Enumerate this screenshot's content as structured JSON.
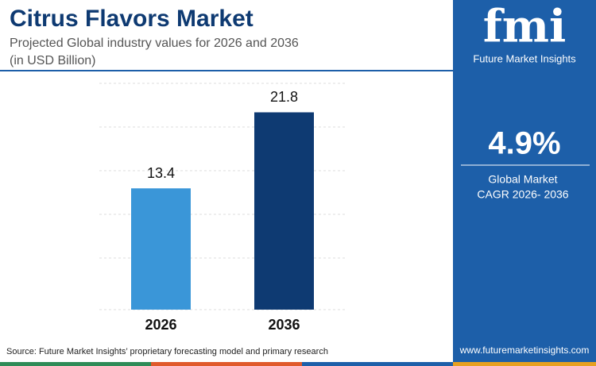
{
  "chart_data": {
    "type": "bar",
    "title": "Citrus Flavors Market",
    "subtitle": [
      "Projected Global industry values for 2026 and 2036",
      "(in USD Billion)"
    ],
    "categories": [
      "2026",
      "2036"
    ],
    "values": [
      13.4,
      21.8
    ],
    "colors": [
      "#3a96d8",
      "#0e3a72"
    ],
    "ylim": [
      0,
      25
    ]
  },
  "sidebar": {
    "brand": "fmi",
    "brand_name": "Future Market Insights",
    "cagr": "4.9%",
    "cagr_label": [
      "Global Market",
      "CAGR 2026- 2036"
    ],
    "url": "www.futuremarketinsights.com"
  },
  "footer": {
    "source": "Source: Future Market Insights’ proprietary forecasting model and primary research"
  }
}
